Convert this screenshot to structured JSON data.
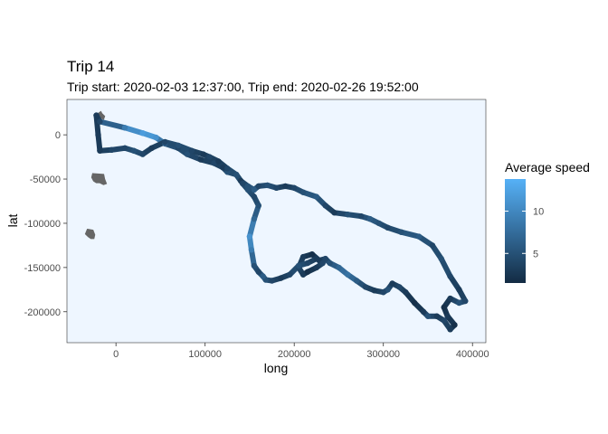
{
  "chart_data": {
    "type": "line",
    "title": "Trip 14",
    "subtitle": "Trip start: 2020-02-03 12:37:00, Trip end: 2020-02-26 19:52:00",
    "xlabel": "long",
    "ylabel": "lat",
    "xlim": [
      -55000,
      415000
    ],
    "ylim": [
      -235000,
      40000
    ],
    "x_ticks": [
      0,
      100000,
      200000,
      300000,
      400000
    ],
    "y_ticks": [
      0,
      -50000,
      -100000,
      -150000,
      -200000
    ],
    "grid": false,
    "panel_background": "#eef6ff",
    "legend": {
      "title": "Average speed",
      "position": "right",
      "ticks": [
        5,
        10
      ],
      "range": [
        1.5,
        13.8
      ],
      "color_low": "#132b43",
      "color_high": "#56b1f7"
    },
    "land_color": "#666666",
    "land_shapes": [
      {
        "name": "north-island",
        "x": [
          -16000,
          -13000,
          -14000,
          -17000,
          -19000,
          -21000,
          -20000,
          -17000
        ],
        "y": [
          24000,
          21000,
          18000,
          19000,
          18000,
          21000,
          24000,
          26000
        ]
      },
      {
        "name": "middle-island",
        "x": [
          -26000,
          -14000,
          -13000,
          -11000,
          -14000,
          -18000,
          -22000,
          -25000,
          -27000
        ],
        "y": [
          -44000,
          -45000,
          -50000,
          -55000,
          -56000,
          -54000,
          -54000,
          -52000,
          -48000
        ]
      },
      {
        "name": "south-island",
        "x": [
          -32000,
          -26000,
          -24000,
          -25000,
          -28000,
          -31000,
          -34000
        ],
        "y": [
          -107000,
          -108000,
          -113000,
          -117000,
          -117000,
          -115000,
          -112000
        ]
      }
    ],
    "path": {
      "x": [
        -22000,
        -18000,
        10000,
        30000,
        45000,
        55000,
        70000,
        80000,
        95000,
        110000,
        120000,
        125000,
        135000,
        140000,
        148000,
        155000,
        160000,
        170000,
        180000,
        190000,
        200000,
        210000,
        225000,
        235000,
        245000,
        260000,
        275000,
        285000,
        295000,
        305000,
        320000,
        340000,
        355000,
        365000,
        375000,
        385000,
        392000,
        385000,
        375000,
        368000,
        372000,
        380000,
        375000,
        368000,
        360000,
        350000,
        345000,
        335000,
        325000,
        318000,
        310000,
        305000,
        300000,
        290000,
        280000,
        270000,
        260000,
        250000,
        240000,
        235000,
        228000,
        220000,
        210000,
        205000,
        210000,
        215000,
        225000,
        232000,
        225000,
        215000,
        205000,
        195000,
        185000,
        175000,
        168000,
        165000,
        160000,
        155000,
        152000,
        150000,
        155000,
        160000,
        155000,
        148000,
        142000,
        135000,
        125000,
        115000,
        105000,
        98000,
        85000,
        70000,
        55000,
        40000,
        30000,
        20000,
        10000,
        -5000,
        -18000,
        -20000,
        -22000
      ],
      "y": [
        22000,
        15000,
        8000,
        2000,
        -3000,
        -10000,
        -15000,
        -22000,
        -28000,
        -32000,
        -37000,
        -42000,
        -45000,
        -52000,
        -58000,
        -62000,
        -58000,
        -57000,
        -60000,
        -58000,
        -60000,
        -65000,
        -70000,
        -80000,
        -88000,
        -90000,
        -92000,
        -95000,
        -100000,
        -105000,
        -110000,
        -115000,
        -125000,
        -140000,
        -160000,
        -175000,
        -188000,
        -190000,
        -185000,
        -195000,
        -205000,
        -215000,
        -220000,
        -210000,
        -205000,
        -205000,
        -200000,
        -190000,
        -178000,
        -172000,
        -168000,
        -175000,
        -178000,
        -176000,
        -172000,
        -165000,
        -158000,
        -150000,
        -145000,
        -140000,
        -142000,
        -135000,
        -138000,
        -150000,
        -158000,
        -155000,
        -150000,
        -145000,
        -140000,
        -145000,
        -148000,
        -158000,
        -162000,
        -165000,
        -164000,
        -160000,
        -155000,
        -148000,
        -130000,
        -115000,
        -95000,
        -80000,
        -70000,
        -62000,
        -55000,
        -45000,
        -38000,
        -30000,
        -25000,
        -22000,
        -18000,
        -12000,
        -8000,
        -15000,
        -22000,
        -18000,
        -15000,
        -17000,
        -18000,
        0,
        22000
      ],
      "speed": [
        3,
        4,
        9,
        12,
        11,
        6,
        4,
        5,
        3,
        4,
        3,
        5,
        4,
        3,
        5,
        6,
        4,
        5,
        4,
        3,
        4,
        5,
        6,
        4,
        3,
        5,
        4,
        6,
        5,
        4,
        5,
        6,
        4,
        5,
        4,
        3,
        4,
        5,
        3,
        2,
        3,
        2,
        3,
        4,
        3,
        5,
        3,
        2,
        3,
        4,
        3,
        5,
        4,
        3,
        4,
        6,
        8,
        7,
        5,
        4,
        3,
        2,
        3,
        4,
        3,
        2,
        3,
        4,
        3,
        4,
        5,
        4,
        3,
        4,
        5,
        6,
        4,
        5,
        9,
        11,
        7,
        5,
        4,
        5,
        4,
        5,
        4,
        3,
        4,
        3,
        4,
        5,
        4,
        3,
        4,
        5,
        4,
        4,
        3,
        3,
        3
      ]
    }
  }
}
